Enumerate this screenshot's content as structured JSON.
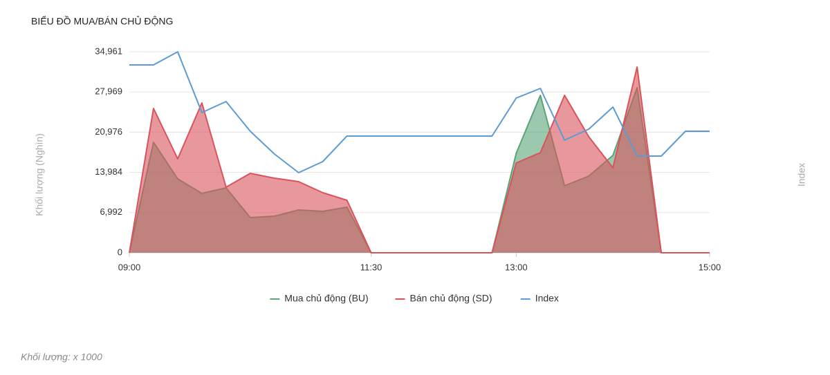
{
  "chart_data": {
    "type": "area",
    "title": "BIỂU ĐỒ MUA/BÁN CHỦ ĐỘNG",
    "y_label": "Khối lượng (Nghìn)",
    "y2_label": "Index",
    "footnote": "Khối lượng: x 1000",
    "categories": [
      "09:00",
      null,
      null,
      null,
      null,
      null,
      null,
      null,
      null,
      null,
      "11:30",
      null,
      null,
      null,
      null,
      null,
      "13:00",
      null,
      null,
      null,
      null,
      null,
      null,
      null,
      "15:00"
    ],
    "series": [
      {
        "name": "Mua chủ động (BU)",
        "color": "#5aa477",
        "type": "area",
        "values": [
          0,
          19223,
          12855,
          10332,
          11293,
          6127,
          6367,
          7449,
          7208,
          7929,
          0,
          0,
          0,
          0,
          0,
          0,
          17300,
          27392,
          11654,
          13336,
          16940,
          28714,
          0,
          0,
          0
        ]
      },
      {
        "name": "Bán chủ động (SD)",
        "color": "#d9535b",
        "type": "area",
        "values": [
          0,
          25110,
          16340,
          26071,
          11413,
          13816,
          12975,
          12375,
          10452,
          9131,
          0,
          0,
          0,
          0,
          0,
          0,
          15619,
          17421,
          27392,
          20184,
          14777,
          32319,
          0,
          0,
          0
        ]
      },
      {
        "name": "Index",
        "color": "#5b9bd5",
        "type": "line",
        "values": [
          32679,
          32679,
          34961,
          24388,
          26311,
          21145,
          17180,
          13937,
          15859,
          20304,
          20304,
          20304,
          20304,
          20304,
          20304,
          20304,
          26912,
          28594,
          19583,
          21505,
          25350,
          16820,
          16820,
          21145,
          21145
        ]
      }
    ],
    "ylim": [
      0,
      34961
    ],
    "yticks": [
      0,
      {
        "value": 6992,
        "label": "6,992"
      },
      {
        "value": 13984,
        "label": "13,984"
      },
      {
        "value": 20976,
        "label": "20,976"
      },
      {
        "value": 27969,
        "label": "27,969"
      },
      {
        "value": 34961,
        "label": "34,961"
      }
    ],
    "grid": true,
    "legend": "bottom"
  }
}
